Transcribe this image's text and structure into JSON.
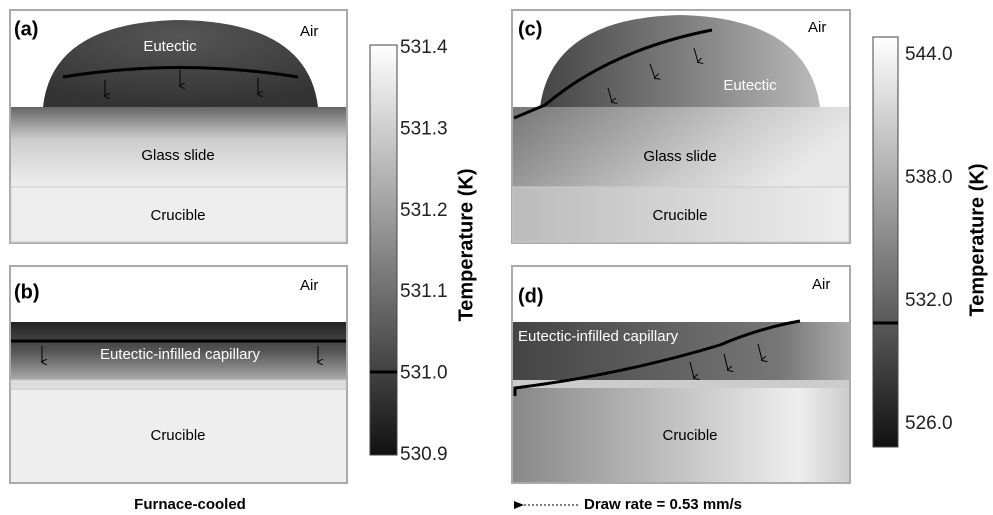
{
  "panels": [
    {
      "label": "(a)",
      "air": "Air",
      "eutectic": "Eutectic",
      "middle": "Glass slide",
      "bottom": "Crucible"
    },
    {
      "label": "(b)",
      "air": "Air",
      "capillary": "Eutectic-infilled capillary",
      "bottom": "Crucible"
    },
    {
      "label": "(c)",
      "air": "Air",
      "eutectic": "Eutectic",
      "middle": "Glass slide",
      "bottom": "Crucible"
    },
    {
      "label": "(d)",
      "air": "Air",
      "capillary": "Eutectic-infilled capillary",
      "bottom": "Crucible"
    }
  ],
  "colorbars": [
    {
      "title": "Temperature (K)",
      "ticks": [
        "531.4",
        "531.3",
        "531.2",
        "531.1",
        "531.0",
        "530.9"
      ]
    },
    {
      "title": "Temperature (K)",
      "ticks": [
        "544.0",
        "538.0",
        "532.0",
        "526.0"
      ]
    }
  ],
  "captions": [
    "Furnace-cooled",
    "Draw rate = 0.53 mm/s"
  ]
}
